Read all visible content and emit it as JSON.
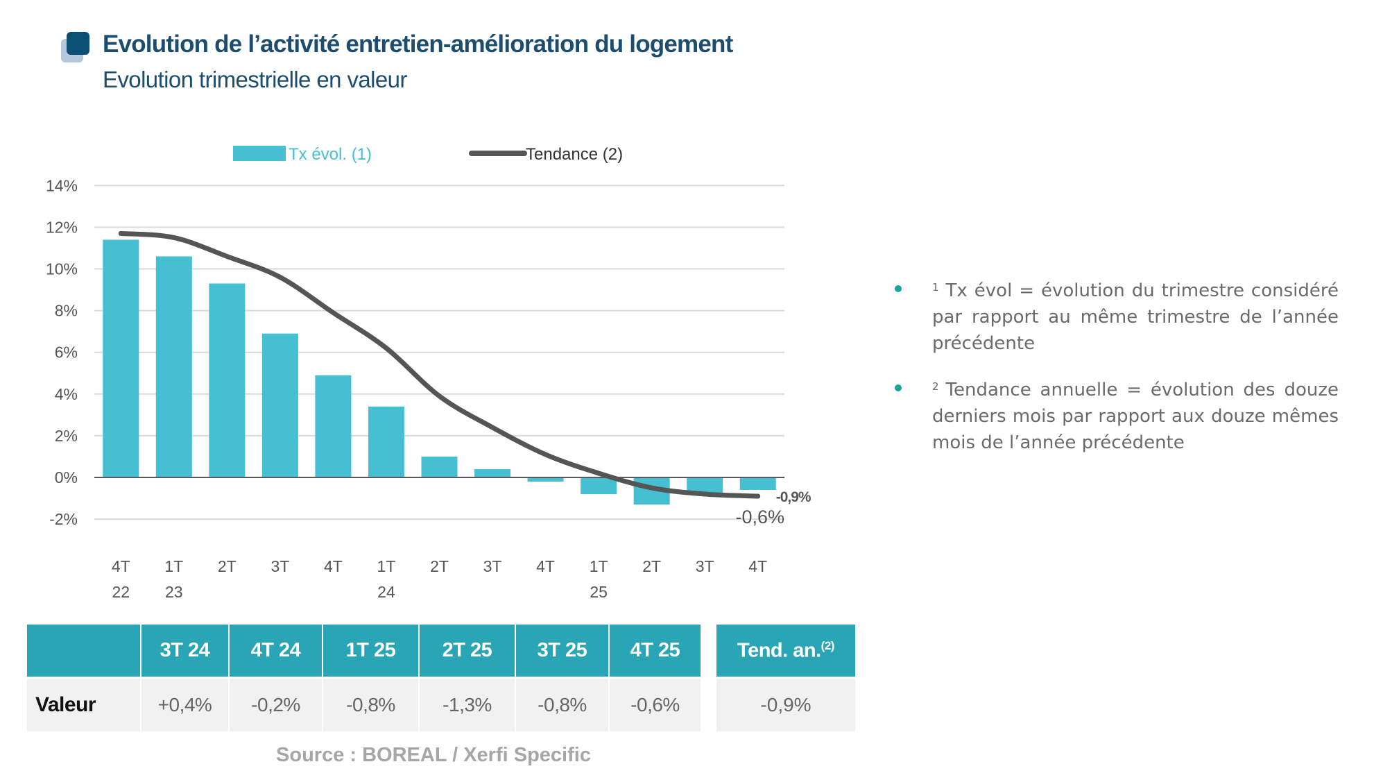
{
  "header": {
    "title": "Evolution de l’activité entretien-amélioration du logement",
    "subtitle": "Evolution trimestrielle en valeur",
    "icon": "stacked-squares-icon"
  },
  "colors": {
    "bar": "#47bfd3",
    "trend_line": "#555555",
    "title": "#1c4d6e",
    "table_header": "#2aa5b5",
    "bullet": "#1aa39a",
    "bar_end_label": "#47bfd3"
  },
  "chart_data": {
    "type": "bar",
    "title": "Evolution trimestrielle en valeur",
    "xlabel": "",
    "ylabel": "",
    "ylim": [
      -2,
      14
    ],
    "yticks": [
      -2,
      0,
      2,
      4,
      6,
      8,
      10,
      12,
      14
    ],
    "ytick_labels": [
      "-2%",
      "0%",
      "2%",
      "4%",
      "6%",
      "8%",
      "10%",
      "12%",
      "14%"
    ],
    "grid": true,
    "legend_position": "top-center",
    "categories": [
      "4T 22",
      "1T 23",
      "2T 23",
      "3T 23",
      "4T 23",
      "1T 24",
      "2T 24",
      "3T 24",
      "4T 24",
      "1T 25",
      "2T 25",
      "3T 25",
      "4T 25"
    ],
    "x_tick_labels": [
      {
        "quarter": "4T",
        "year": "22"
      },
      {
        "quarter": "1T",
        "year": "23"
      },
      {
        "quarter": "2T",
        "year": ""
      },
      {
        "quarter": "3T",
        "year": ""
      },
      {
        "quarter": "4T",
        "year": ""
      },
      {
        "quarter": "1T",
        "year": "24"
      },
      {
        "quarter": "2T",
        "year": ""
      },
      {
        "quarter": "3T",
        "year": ""
      },
      {
        "quarter": "4T",
        "year": ""
      },
      {
        "quarter": "1T",
        "year": "25"
      },
      {
        "quarter": "2T",
        "year": ""
      },
      {
        "quarter": "3T",
        "year": ""
      },
      {
        "quarter": "4T",
        "year": ""
      }
    ],
    "series": [
      {
        "name": "Tx évol. (1)",
        "type": "bar",
        "values": [
          11.4,
          10.6,
          9.3,
          6.9,
          4.9,
          3.4,
          1.0,
          0.4,
          -0.2,
          -0.8,
          -1.3,
          -0.8,
          -0.6
        ],
        "end_label": "-0,6%"
      },
      {
        "name": "Tendance (2)",
        "type": "line",
        "values": [
          11.7,
          11.5,
          10.6,
          9.6,
          7.9,
          6.2,
          3.9,
          2.4,
          1.1,
          0.2,
          -0.5,
          -0.8,
          -0.9
        ],
        "end_label": "-0,9%"
      }
    ]
  },
  "notes": [
    {
      "marker": "1",
      "text": "Tx évol = évolution du trimestre considéré par rapport au même trimestre de l’année précédente"
    },
    {
      "marker": "2",
      "text": "Tendance annuelle = évolution des douze derniers mois par rapport aux douze mêmes mois de l’année précédente"
    }
  ],
  "table": {
    "headers": [
      "",
      "3T 24",
      "4T 24",
      "1T 25",
      "2T 25",
      "3T 25",
      "4T 25"
    ],
    "row_label": "Valeur",
    "values": [
      "+0,4%",
      "-0,2%",
      "-0,8%",
      "-1,3%",
      "-0,8%",
      "-0,6%"
    ],
    "trend_header": "Tend. an.",
    "trend_header_sup": "(2)",
    "trend_value": "-0,9%"
  },
  "source": "Source : BOREAL / Xerfi Specific"
}
